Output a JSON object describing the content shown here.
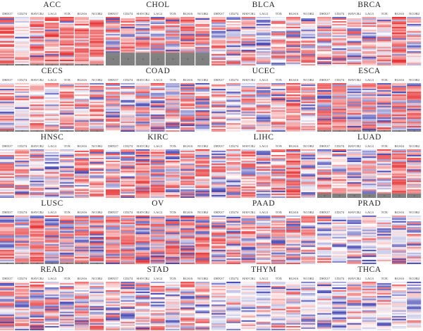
{
  "chart_data": {
    "type": "heatmap",
    "columns": [
      "DHX37",
      "CD274",
      "HAVCR2",
      "LAG3",
      "TOX",
      "RGS16",
      "NCOR2"
    ],
    "colors": {
      "high": "#e41a1c",
      "low": "#3a3cb0",
      "mid": "#ffffff",
      "na": "#808080"
    },
    "panels": [
      {
        "title": "ACC",
        "intensity": [
          0.8,
          0.15,
          0.7,
          0.85,
          0.75,
          0.7,
          0.8
        ],
        "blue": 0.1,
        "na_rows": 1
      },
      {
        "title": "CHOL",
        "intensity": [
          0.55,
          0.6,
          0.55,
          0.5,
          0.45,
          0.6,
          0.55
        ],
        "blue": 0.4,
        "na_rows": 9
      },
      {
        "title": "BLCA",
        "intensity": [
          0.4,
          0.3,
          0.35,
          0.25,
          0.35,
          0.4,
          0.35
        ],
        "blue": 0.35,
        "na_rows": 0
      },
      {
        "title": "BRCA",
        "intensity": [
          0.45,
          0.35,
          0.4,
          0.35,
          0.3,
          0.7,
          0.35
        ],
        "blue": 0.25,
        "na_rows": 0
      },
      {
        "title": "CECS",
        "intensity": [
          0.4,
          0.2,
          0.45,
          0.35,
          0.5,
          0.45,
          0.45
        ],
        "blue": 0.15,
        "na_rows": 1
      },
      {
        "title": "COAD",
        "intensity": [
          0.45,
          0.2,
          0.4,
          0.35,
          0.4,
          0.45,
          0.4
        ],
        "blue": 0.45,
        "na_rows": 0
      },
      {
        "title": "UCEC",
        "intensity": [
          0.35,
          0.1,
          0.4,
          0.35,
          0.4,
          0.55,
          0.4
        ],
        "blue": 0.3,
        "na_rows": 0
      },
      {
        "title": "ESCA",
        "intensity": [
          0.55,
          0.55,
          0.5,
          0.45,
          0.5,
          0.55,
          0.55
        ],
        "blue": 0.5,
        "na_rows": 1
      },
      {
        "title": "HNSC",
        "intensity": [
          0.4,
          0.25,
          0.3,
          0.2,
          0.4,
          0.5,
          0.4
        ],
        "blue": 0.3,
        "na_rows": 0
      },
      {
        "title": "KIRC",
        "intensity": [
          0.5,
          0.4,
          0.65,
          0.55,
          0.4,
          0.45,
          0.4
        ],
        "blue": 0.45,
        "na_rows": 0
      },
      {
        "title": "LIHC",
        "intensity": [
          0.35,
          0.3,
          0.45,
          0.4,
          0.4,
          0.75,
          0.4
        ],
        "blue": 0.35,
        "na_rows": 0
      },
      {
        "title": "LUAD",
        "intensity": [
          0.4,
          0.3,
          0.35,
          0.3,
          0.4,
          0.6,
          0.4
        ],
        "blue": 0.4,
        "na_rows": 3
      },
      {
        "title": "LUSC",
        "intensity": [
          0.45,
          0.35,
          0.7,
          0.4,
          0.4,
          0.45,
          0.45
        ],
        "blue": 0.55,
        "na_rows": 1
      },
      {
        "title": "OV",
        "intensity": [
          0.6,
          0.55,
          0.6,
          0.55,
          0.55,
          0.6,
          0.6
        ],
        "blue": 0.55,
        "na_rows": 0
      },
      {
        "title": "PAAD",
        "intensity": [
          0.4,
          0.35,
          0.4,
          0.35,
          0.3,
          0.45,
          0.4
        ],
        "blue": 0.45,
        "na_rows": 0
      },
      {
        "title": "PRAD",
        "intensity": [
          0.2,
          0.1,
          0.2,
          0.15,
          0.15,
          0.2,
          0.2
        ],
        "blue": 0.3,
        "na_rows": 0
      },
      {
        "title": "READ",
        "intensity": [
          0.4,
          0.3,
          0.4,
          0.3,
          0.35,
          0.4,
          0.4
        ],
        "blue": 0.4,
        "na_rows": 0
      },
      {
        "title": "STAD",
        "intensity": [
          0.3,
          0.25,
          0.35,
          0.3,
          0.3,
          0.35,
          0.3
        ],
        "blue": 0.35,
        "na_rows": 0
      },
      {
        "title": "THYM",
        "intensity": [
          0.1,
          0.1,
          0.15,
          0.1,
          0.2,
          0.2,
          0.1
        ],
        "blue": 0.3,
        "na_rows": 0
      },
      {
        "title": "THCA",
        "intensity": [
          0.1,
          0.1,
          0.2,
          0.1,
          0.15,
          0.15,
          0.1
        ],
        "blue": 0.3,
        "na_rows": 0
      }
    ]
  }
}
